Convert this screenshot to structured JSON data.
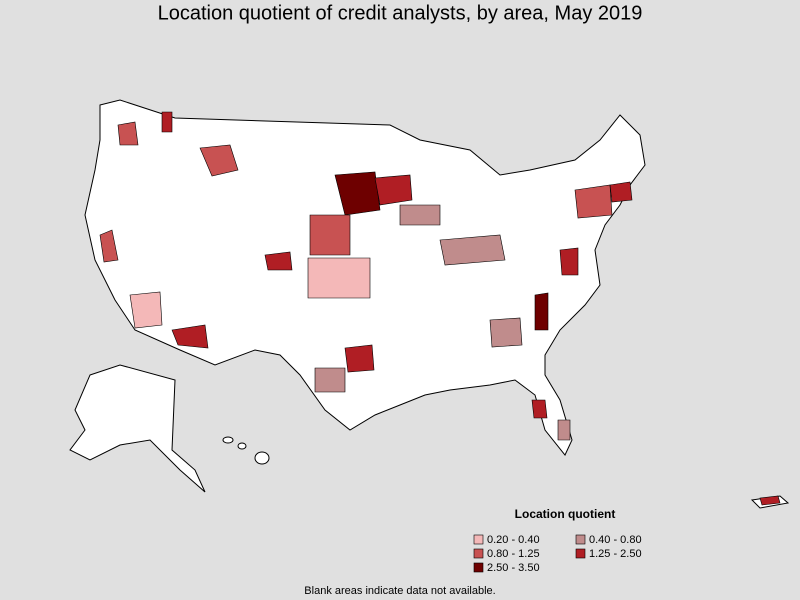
{
  "title": "Location quotient of credit analysts, by area, May 2019",
  "legend": {
    "title": "Location quotient",
    "items": [
      {
        "label": "0.20 - 0.40",
        "color": "#f4b8b8"
      },
      {
        "label": "0.40 - 0.80",
        "color": "#c08c8c"
      },
      {
        "label": "0.80 - 1.25",
        "color": "#c85252"
      },
      {
        "label": "1.25 - 2.50",
        "color": "#b01e24"
      },
      {
        "label": "2.50 - 3.50",
        "color": "#6e0000"
      }
    ]
  },
  "footnote": "Blank areas indicate data not available."
}
